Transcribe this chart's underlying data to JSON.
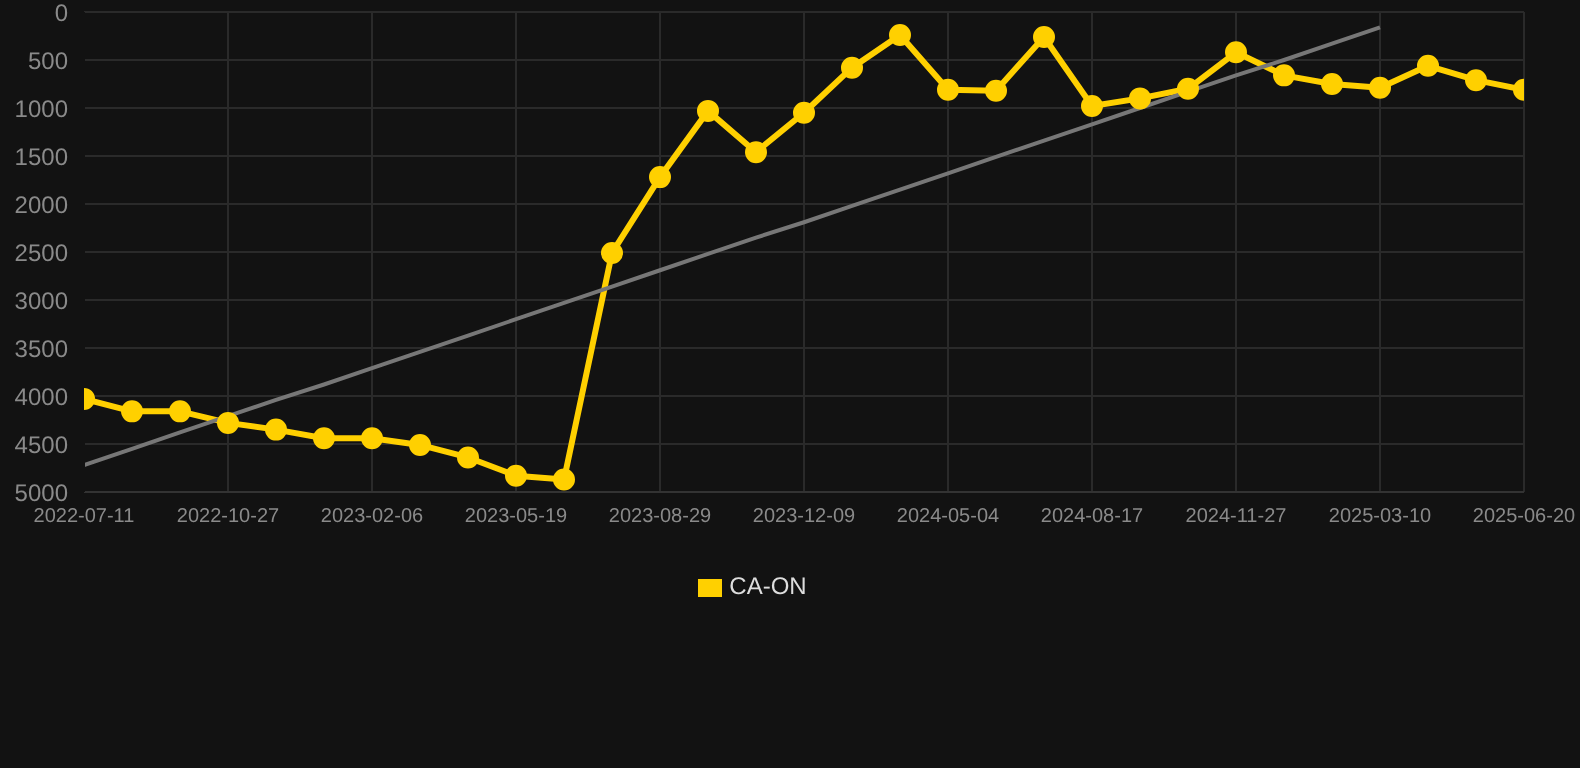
{
  "chart_data": {
    "type": "line",
    "categories": [
      "2022-07-11",
      null,
      null,
      "2022-10-27",
      null,
      null,
      "2023-02-06",
      null,
      null,
      "2023-05-19",
      null,
      null,
      "2023-08-29",
      null,
      null,
      "2023-12-09",
      null,
      null,
      "2024-05-04",
      null,
      null,
      "2024-08-17",
      null,
      null,
      "2024-11-27",
      null,
      null,
      "2025-03-10",
      null,
      null,
      "2025-06-20"
    ],
    "series": [
      {
        "name": "CA-ON",
        "color": "#ffd000",
        "marker": "circle",
        "values": [
          4030,
          4160,
          4160,
          4280,
          4350,
          4440,
          4440,
          4510,
          4640,
          4830,
          4870,
          2510,
          1720,
          1030,
          1460,
          1050,
          580,
          240,
          810,
          820,
          260,
          980,
          900,
          800,
          420,
          660,
          750,
          790,
          560,
          710,
          810
        ]
      },
      {
        "type": "line",
        "color": "#777777",
        "marker": "none",
        "values": [
          4720,
          4550,
          4380,
          4210,
          4040,
          3880,
          3710,
          3540,
          3370,
          3200,
          3030,
          2860,
          2690,
          2520,
          2350,
          2190,
          2020,
          1850,
          1680,
          1510,
          1340,
          1170,
          1000,
          830,
          660,
          500,
          330,
          160,
          null,
          null,
          null
        ]
      }
    ],
    "ylim": [
      5000,
      0
    ],
    "yticks": [
      0,
      500,
      1000,
      1500,
      2000,
      2500,
      3000,
      3500,
      4000,
      4500,
      5000
    ],
    "grid": true,
    "legend": "bottom"
  }
}
